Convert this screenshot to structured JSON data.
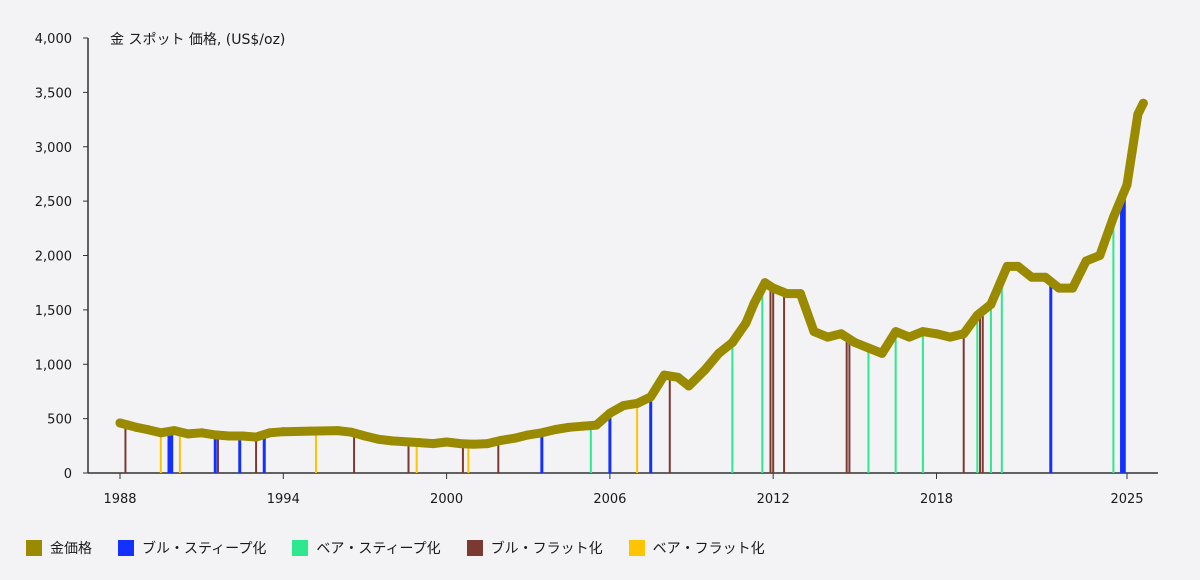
{
  "chart_data": {
    "type": "line",
    "title": "",
    "ylabel": "金 スポット 価格, (US$/oz)",
    "xlabel": "",
    "xlim": [
      1988,
      2026
    ],
    "ylim": [
      0,
      4000
    ],
    "x_ticks": [
      "1988",
      "1994",
      "2000",
      "2006",
      "2012",
      "2018",
      "2025"
    ],
    "y_ticks": [
      "0",
      "500",
      "1,000",
      "1,500",
      "2,000",
      "2,500",
      "3,000",
      "3,500",
      "4,000"
    ],
    "colors": {
      "gold": "#9a8a00",
      "bull_steep": "#1430ff",
      "bear_steep": "#2ee88f",
      "bull_flat": "#7a3a32",
      "bear_flat": "#ffc400"
    },
    "gold_series": {
      "name": "金価格",
      "x": [
        1988.0,
        1988.3,
        1988.6,
        1989.0,
        1989.5,
        1990.0,
        1990.5,
        1991.0,
        1991.5,
        1992.0,
        1992.5,
        1993.0,
        1993.5,
        1994.0,
        1995.0,
        1996.0,
        1996.5,
        1997.0,
        1997.5,
        1998.0,
        1999.0,
        1999.5,
        2000.0,
        2000.5,
        2001.0,
        2001.5,
        2002.0,
        2002.5,
        2003.0,
        2003.5,
        2004.0,
        2004.5,
        2005.0,
        2005.5,
        2006.0,
        2006.5,
        2007.0,
        2007.5,
        2008.0,
        2008.5,
        2008.9,
        2009.5,
        2010.0,
        2010.5,
        2011.0,
        2011.3,
        2011.7,
        2012.0,
        2012.5,
        2013.0,
        2013.5,
        2014.0,
        2014.5,
        2015.0,
        2015.5,
        2016.0,
        2016.5,
        2017.0,
        2017.5,
        2018.0,
        2018.5,
        2019.0,
        2019.5,
        2020.0,
        2020.6,
        2021.0,
        2021.5,
        2022.0,
        2022.5,
        2023.0,
        2023.5,
        2024.0,
        2024.5,
        2025.0,
        2025.4,
        2025.6
      ],
      "y": [
        460,
        440,
        420,
        400,
        370,
        390,
        360,
        370,
        350,
        340,
        340,
        330,
        370,
        380,
        385,
        390,
        375,
        340,
        310,
        295,
        280,
        270,
        285,
        270,
        265,
        270,
        300,
        320,
        350,
        370,
        400,
        420,
        430,
        440,
        550,
        620,
        640,
        700,
        900,
        880,
        800,
        950,
        1100,
        1200,
        1380,
        1560,
        1750,
        1700,
        1650,
        1650,
        1300,
        1250,
        1280,
        1200,
        1150,
        1100,
        1300,
        1250,
        1300,
        1280,
        1250,
        1280,
        1450,
        1550,
        1900,
        1900,
        1800,
        1800,
        1700,
        1700,
        1950,
        2000,
        2350,
        2650,
        3300,
        3400
      ]
    },
    "bull_steep_events": [
      1989.8,
      1989.9,
      1991.5,
      1992.4,
      1993.3,
      2003.5,
      2006.0,
      2007.5,
      2022.2,
      2024.8,
      2024.9
    ],
    "bear_steep_events": [
      2005.3,
      2010.5,
      2011.6,
      2015.5,
      2016.5,
      2017.5,
      2019.5,
      2020.0,
      2020.4,
      2024.5
    ],
    "bull_flat_events": [
      1988.2,
      1991.6,
      1993.0,
      1996.6,
      1998.6,
      2000.6,
      2001.9,
      2008.2,
      2011.9,
      2012.0,
      2012.4,
      2014.7,
      2014.8,
      2019.0,
      2019.6,
      2019.7
    ],
    "bear_flat_events": [
      1989.5,
      1990.2,
      1995.2,
      1998.9,
      2000.8,
      2007.0
    ],
    "legend": [
      {
        "label": "金価格",
        "color": "#9a8a00"
      },
      {
        "label": "ブル・スティープ化",
        "color": "#1430ff"
      },
      {
        "label": "ベア・スティープ化",
        "color": "#2ee88f"
      },
      {
        "label": "ブル・フラット化",
        "color": "#7a3a32"
      },
      {
        "label": "ベア・フラット化",
        "color": "#ffc400"
      }
    ]
  }
}
